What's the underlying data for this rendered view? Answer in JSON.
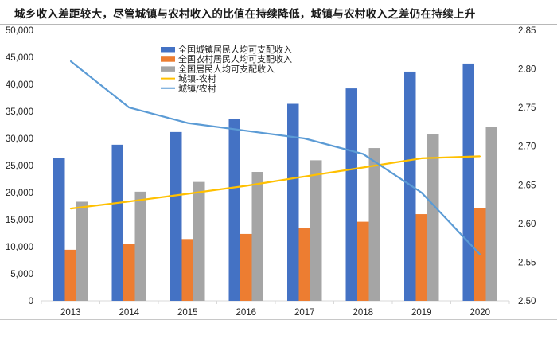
{
  "title": "城乡收入差距较大，尽管城镇与农村收入的比值在持续降低，城镇与农村收入之差仍在持续上升",
  "chart_data": {
    "type": "bar",
    "title": "城乡收入差距较大，尽管城镇与农村收入的比值在持续降低，城镇与农村收入之差仍在持续上升",
    "categories": [
      "2013",
      "2014",
      "2015",
      "2016",
      "2017",
      "2018",
      "2019",
      "2020"
    ],
    "series": [
      {
        "name": "全国城镇居民人均可支配收入",
        "type": "bar",
        "axis": "left",
        "color": "#4472c4",
        "values": [
          26467,
          28844,
          31195,
          33616,
          36396,
          39251,
          42359,
          43834
        ]
      },
      {
        "name": "全国农村居民人均可支配收入",
        "type": "bar",
        "axis": "left",
        "color": "#ed7d31",
        "values": [
          9430,
          10489,
          11422,
          12363,
          13432,
          14617,
          16021,
          17131
        ]
      },
      {
        "name": "全国居民人均可支配收入",
        "type": "bar",
        "axis": "left",
        "color": "#a5a5a5",
        "values": [
          18311,
          20167,
          21966,
          23821,
          25974,
          28228,
          30733,
          32189
        ]
      },
      {
        "name": "城镇-农村",
        "type": "line",
        "axis": "left",
        "color": "#ffc000",
        "values": [
          17037,
          18355,
          19773,
          21253,
          22964,
          24634,
          26338,
          26703
        ]
      },
      {
        "name": "城镇/农村",
        "type": "line",
        "axis": "right",
        "color": "#5b9bd5",
        "values": [
          2.81,
          2.75,
          2.73,
          2.72,
          2.71,
          2.69,
          2.64,
          2.56
        ]
      }
    ],
    "y_left": {
      "min": 0,
      "max": 50000,
      "step": 5000,
      "tick_labels": [
        "0",
        "5,000",
        "10,000",
        "15,000",
        "20,000",
        "25,000",
        "30,000",
        "35,000",
        "40,000",
        "45,000",
        "50,000"
      ]
    },
    "y_right": {
      "min": 2.5,
      "max": 2.85,
      "step": 0.05,
      "tick_labels": [
        "2.50",
        "2.55",
        "2.60",
        "2.65",
        "2.70",
        "2.75",
        "2.80",
        "2.85"
      ]
    },
    "xlabel": "",
    "ylabel": "",
    "grid": false,
    "legend_position": "top-center"
  }
}
